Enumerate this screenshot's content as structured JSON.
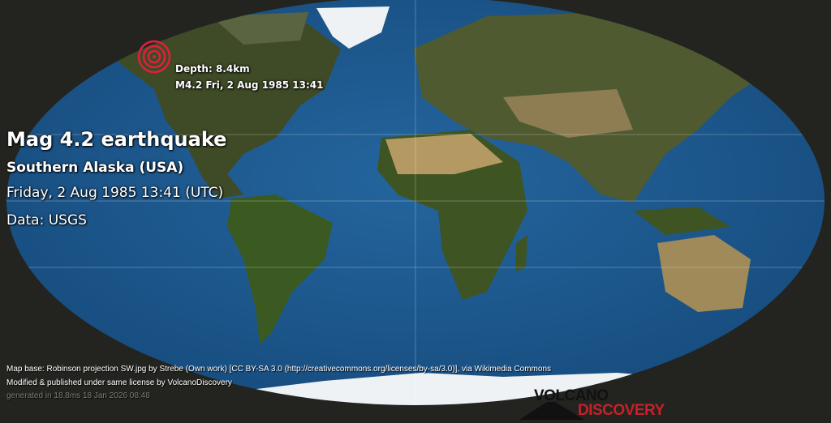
{
  "event": {
    "title": "Mag 4.2 earthquake",
    "region": "Southern Alaska (USA)",
    "datetime": "Friday,  2 Aug 1985 13:41 (UTC)",
    "source": "Data: USGS"
  },
  "marker": {
    "depth": "Depth: 8.4km",
    "label": "M4.2 Fri,  2 Aug 1985 13:41",
    "color": "#e0203a"
  },
  "credits": {
    "line1": "Map base: Robinson projection SW.jpg by Strebe (Own work) [CC BY-SA 3.0 (http://creativecommons.org/licenses/by-sa/3.0)], via Wikimedia Commons",
    "line2": "Modified & published under same license by VolcanoDiscovery",
    "line3": "generated in 18.8ms 18 Jan 2026 08:48"
  },
  "logo": {
    "line1": "VOLCANO",
    "line2": "DISCOVERY"
  },
  "colors": {
    "ocean": "#1d5a92",
    "land": "#4a5a2c",
    "desert": "#a08a5a",
    "ice": "#eef2f4",
    "background": "#23241f"
  }
}
